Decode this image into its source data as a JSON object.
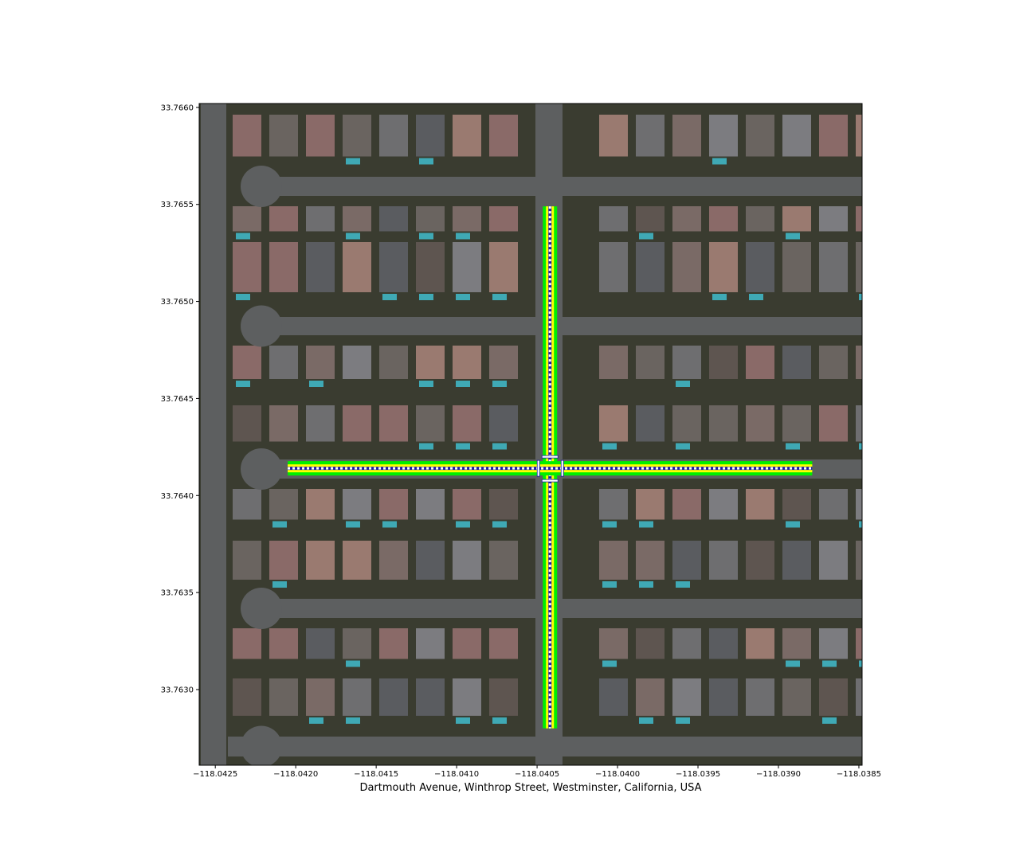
{
  "figure": {
    "xlabel": "Dartmouth Avenue, Winthrop Street, Westminster, California, USA"
  },
  "map": {
    "type": "aerial-image-with-lane-overlay",
    "xlim": [
      -118.0426,
      -118.03848
    ],
    "ylim": [
      33.76261,
      33.76602
    ],
    "x_ticks": [
      -118.0425,
      -118.042,
      -118.0415,
      -118.041,
      -118.0405,
      -118.04,
      -118.0395,
      -118.039,
      -118.0385
    ],
    "x_tick_labels": [
      "−118.0425",
      "−118.0420",
      "−118.0415",
      "−118.0410",
      "−118.0405",
      "−118.0400",
      "−118.0395",
      "−118.0390",
      "−118.0385"
    ],
    "y_ticks": [
      33.766,
      33.7655,
      33.765,
      33.7645,
      33.764,
      33.7635,
      33.763
    ],
    "y_tick_labels": [
      "33.7660",
      "33.7655",
      "33.7650",
      "33.7645",
      "33.7640",
      "33.7635",
      "33.7630"
    ],
    "lanes": [
      {
        "name": "Dartmouth Avenue",
        "orientation": "vertical",
        "lon": -118.04042,
        "lat_range": [
          33.7628,
          33.76549
        ]
      },
      {
        "name": "Winthrop Street",
        "orientation": "horizontal",
        "lat": 33.76414,
        "lon_range": [
          -118.04205,
          -118.03879
        ]
      }
    ],
    "colors": {
      "lane_edge": "#00ee00",
      "lane_inner": "#ffff00",
      "lane_center": "#ffffff",
      "lane_marker": "#1a1aa8",
      "road": "#5d5f60",
      "ground": "#3a3c30"
    }
  }
}
